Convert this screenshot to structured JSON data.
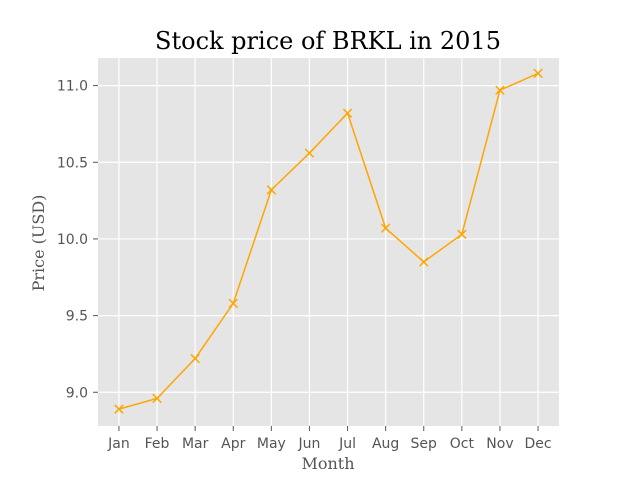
{
  "chart_data": {
    "type": "line",
    "title": "Stock price of BRKL in 2015",
    "xlabel": "Month",
    "ylabel": "Price (USD)",
    "categories": [
      "Jan",
      "Feb",
      "Mar",
      "Apr",
      "May",
      "Jun",
      "Jul",
      "Aug",
      "Sep",
      "Oct",
      "Nov",
      "Dec"
    ],
    "series": [
      {
        "values": [
          8.89,
          8.96,
          9.22,
          9.58,
          10.32,
          10.56,
          10.82,
          10.07,
          9.85,
          10.03,
          10.97,
          11.08
        ]
      }
    ],
    "ylim": [
      8.78,
      11.18
    ],
    "yticks": [
      9.0,
      9.5,
      10.0,
      10.5,
      11.0
    ],
    "ytick_labels": [
      "9.0",
      "9.5",
      "10.0",
      "10.5",
      "11.0"
    ],
    "grid": true,
    "line_color": "#FFA500",
    "marker": "x",
    "background_color": "#E5E5E5",
    "grid_color": "#FFFFFF"
  }
}
